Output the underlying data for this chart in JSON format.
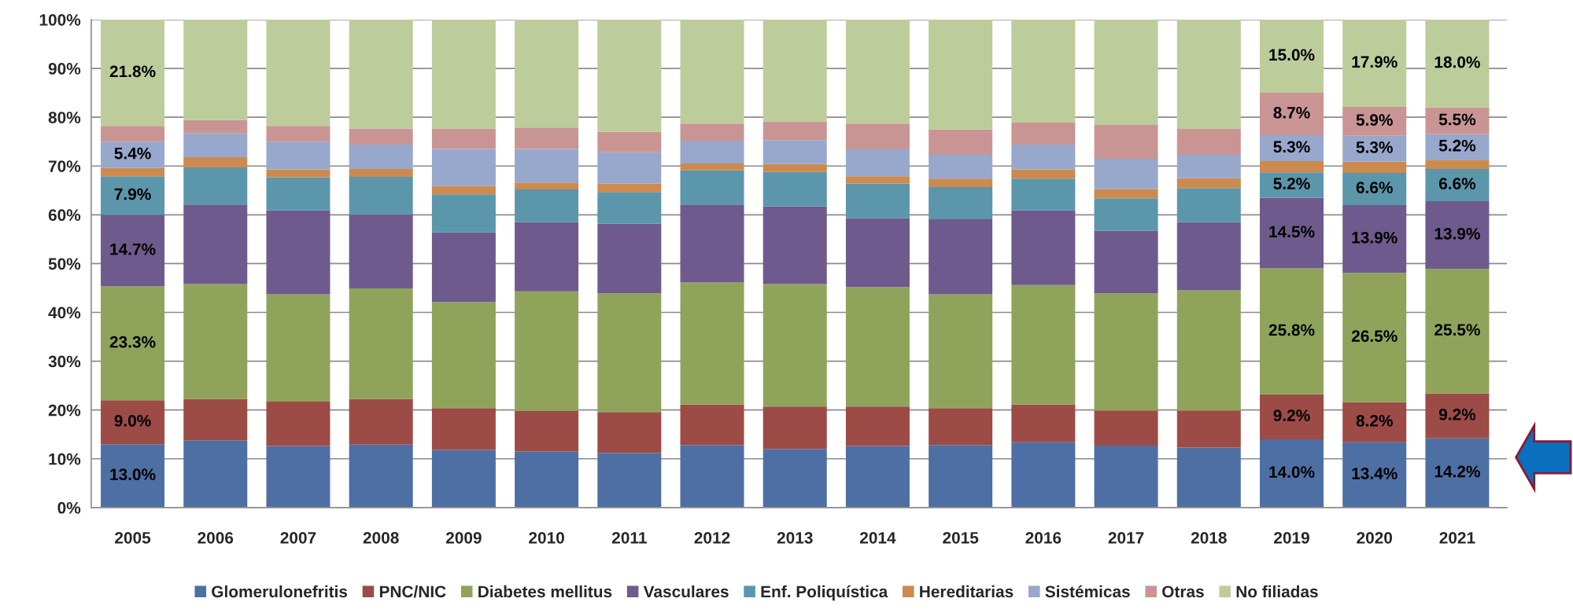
{
  "chart_data": {
    "type": "bar",
    "stacked": true,
    "categories": [
      "2005",
      "2006",
      "2007",
      "2008",
      "2009",
      "2010",
      "2011",
      "2012",
      "2013",
      "2014",
      "2015",
      "2016",
      "2017",
      "2018",
      "2019",
      "2020",
      "2021"
    ],
    "series": [
      {
        "name": "Glomerulonefritis",
        "color": "#4e6fa3",
        "values": [
          13.0,
          13.8,
          12.6,
          12.9,
          11.8,
          11.5,
          11.2,
          12.8,
          12.0,
          12.6,
          12.8,
          13.4,
          12.7,
          12.3,
          14.0,
          13.4,
          14.2
        ],
        "value_labels": [
          "13.0%",
          null,
          null,
          null,
          null,
          null,
          null,
          null,
          null,
          null,
          null,
          null,
          null,
          null,
          "14.0%",
          "13.4%",
          "14.2%"
        ]
      },
      {
        "name": "PNC/NIC",
        "color": "#9c4b47",
        "values": [
          9.0,
          8.5,
          9.1,
          9.4,
          8.6,
          8.3,
          8.4,
          8.3,
          8.7,
          8.1,
          7.6,
          7.7,
          7.2,
          7.6,
          9.2,
          8.2,
          9.2
        ],
        "value_labels": [
          "9.0%",
          null,
          null,
          null,
          null,
          null,
          null,
          null,
          null,
          null,
          null,
          null,
          null,
          null,
          "9.2%",
          "8.2%",
          "9.2%"
        ]
      },
      {
        "name": "Diabetes mellitus",
        "color": "#8fa45a",
        "values": [
          23.3,
          23.5,
          22.0,
          22.6,
          21.7,
          24.5,
          24.3,
          25.0,
          25.1,
          24.5,
          23.3,
          24.5,
          24.0,
          24.6,
          25.8,
          26.5,
          25.5
        ],
        "value_labels": [
          "23.3%",
          null,
          null,
          null,
          null,
          null,
          null,
          null,
          null,
          null,
          null,
          null,
          null,
          null,
          "25.8%",
          "26.5%",
          "25.5%"
        ]
      },
      {
        "name": "Vasculares",
        "color": "#6e5a8c",
        "values": [
          14.7,
          16.3,
          17.2,
          15.2,
          14.3,
          14.2,
          14.3,
          16.0,
          15.9,
          14.1,
          15.4,
          15.3,
          12.8,
          14.0,
          14.5,
          13.9,
          13.9
        ],
        "value_labels": [
          "14.7%",
          null,
          null,
          null,
          null,
          null,
          null,
          null,
          null,
          null,
          null,
          null,
          null,
          null,
          "14.5%",
          "13.9%",
          "13.9%"
        ]
      },
      {
        "name": "Enf. Poliquística",
        "color": "#5b96ab",
        "values": [
          7.9,
          7.6,
          6.8,
          7.7,
          7.8,
          6.7,
          6.5,
          7.0,
          7.1,
          7.1,
          6.6,
          6.5,
          6.7,
          7.0,
          5.2,
          6.6,
          6.6
        ],
        "value_labels": [
          "7.9%",
          null,
          null,
          null,
          null,
          null,
          null,
          null,
          null,
          null,
          null,
          null,
          null,
          null,
          "5.2%",
          "6.6%",
          "6.6%"
        ]
      },
      {
        "name": "Hereditarias",
        "color": "#cc8a4e",
        "values": [
          1.7,
          2.1,
          1.6,
          1.6,
          1.7,
          1.4,
          1.7,
          1.4,
          1.6,
          1.5,
          1.7,
          1.9,
          1.9,
          2.0,
          2.3,
          2.3,
          1.9
        ]
      },
      {
        "name": "Sistémicas",
        "color": "#97a8cc",
        "values": [
          5.4,
          4.9,
          5.7,
          5.0,
          7.6,
          6.9,
          6.4,
          4.7,
          4.9,
          5.5,
          4.9,
          5.1,
          6.2,
          4.8,
          5.3,
          5.3,
          5.2
        ],
        "value_labels": [
          "5.4%",
          null,
          null,
          null,
          null,
          null,
          null,
          null,
          null,
          null,
          null,
          null,
          null,
          null,
          "5.3%",
          "5.3%",
          "5.2%"
        ]
      },
      {
        "name": "Otras",
        "color": "#c99594",
        "values": [
          3.2,
          2.7,
          3.2,
          3.3,
          4.2,
          4.4,
          4.2,
          3.5,
          3.8,
          5.3,
          5.2,
          4.5,
          6.9,
          5.3,
          8.7,
          5.9,
          5.5
        ],
        "value_labels": [
          null,
          null,
          null,
          null,
          null,
          null,
          null,
          null,
          null,
          null,
          null,
          null,
          null,
          null,
          "8.7%",
          "5.9%",
          "5.5%"
        ]
      },
      {
        "name": "No filiadas",
        "color": "#bdcc9b",
        "values": [
          21.8,
          20.6,
          21.8,
          22.3,
          22.3,
          22.1,
          23.0,
          21.3,
          20.9,
          21.3,
          22.5,
          21.1,
          21.6,
          22.4,
          15.0,
          17.9,
          18.0
        ],
        "value_labels": [
          "21.8%",
          null,
          null,
          null,
          null,
          null,
          null,
          null,
          null,
          null,
          null,
          null,
          null,
          null,
          "15.0%",
          "17.9%",
          "18.0%"
        ]
      }
    ],
    "ylim": [
      0,
      100
    ],
    "yticks": [
      {
        "value": 0,
        "label": "0%"
      },
      {
        "value": 10,
        "label": "10%"
      },
      {
        "value": 20,
        "label": "20%"
      },
      {
        "value": 30,
        "label": "30%"
      },
      {
        "value": 40,
        "label": "40%"
      },
      {
        "value": 50,
        "label": "50%"
      },
      {
        "value": 60,
        "label": "60%"
      },
      {
        "value": 70,
        "label": "70%"
      },
      {
        "value": 80,
        "label": "80%"
      },
      {
        "value": 90,
        "label": "90%"
      },
      {
        "value": 100,
        "label": "100%"
      }
    ],
    "grid": "y",
    "legend": "bottom"
  }
}
